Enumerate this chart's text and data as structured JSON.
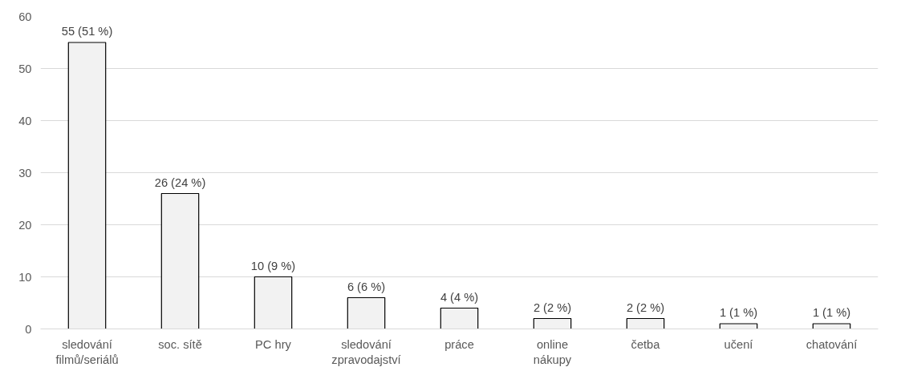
{
  "chart_data": {
    "type": "bar",
    "categories": [
      "sledování\nfilmů/seriálů",
      "soc. sítě",
      "PC hry",
      "sledování\nzpravodajství",
      "práce",
      "online\nnákupy",
      "četba",
      "učení",
      "chatování"
    ],
    "values": [
      55,
      26,
      10,
      6,
      4,
      2,
      2,
      1,
      1
    ],
    "value_labels": [
      "55 (51 %)",
      "26 (24 %)",
      "10 (9 %)",
      "6 (6 %)",
      "4 (4 %)",
      "2 (2 %)",
      "2 (2 %)",
      "1 (1 %)",
      "1 (1 %)"
    ],
    "color": "#f2f2f2",
    "ylim": [
      0,
      60
    ],
    "yticks": [
      0,
      10,
      20,
      30,
      40,
      50,
      60
    ],
    "grid": "y"
  }
}
